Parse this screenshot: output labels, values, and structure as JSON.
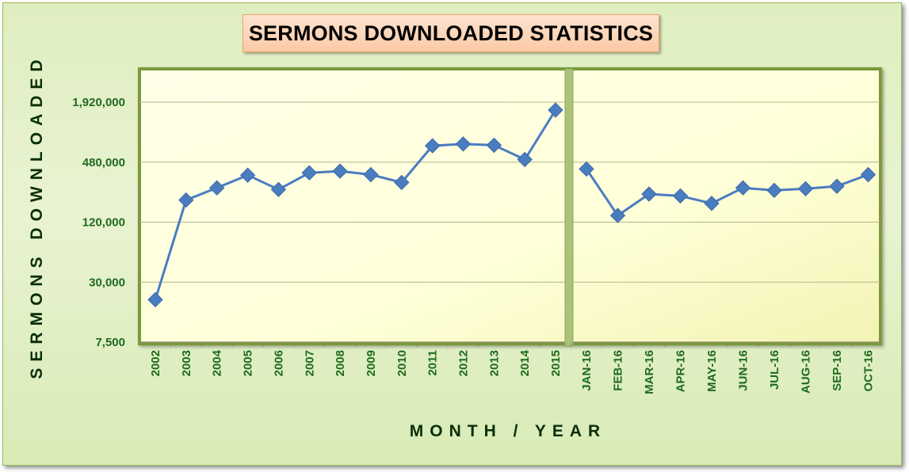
{
  "chart_data": {
    "type": "line",
    "title": "SERMONS DOWNLOADED STATISTICS",
    "xlabel": "MONTH / YEAR",
    "ylabel": "SERMONS DOWNLOADED",
    "y_scale": "log",
    "y_ticks": [
      7500,
      30000,
      120000,
      480000,
      1920000
    ],
    "y_tick_labels": [
      "7,500",
      "30,000",
      "120,000",
      "480,000",
      "1,920,000"
    ],
    "ylim": [
      7500,
      3800000
    ],
    "grid": true,
    "legend": "none",
    "marker": "diamond",
    "line_color": "#4a7cc0",
    "segments": [
      {
        "categories": [
          "2002",
          "2003",
          "2004",
          "2005",
          "2006",
          "2007",
          "2008",
          "2009",
          "2010",
          "2011",
          "2012",
          "2013",
          "2014",
          "2015"
        ],
        "values": [
          20000,
          200000,
          265000,
          355000,
          255000,
          375000,
          390000,
          360000,
          300000,
          700000,
          730000,
          710000,
          510000,
          1600000
        ]
      },
      {
        "categories": [
          "JAN-16",
          "FEB-16",
          "MAR-16",
          "APR-16",
          "MAY-16",
          "JUN-16",
          "JUL-16",
          "AUG-16",
          "SEP-16",
          "OCT-16"
        ],
        "values": [
          410000,
          140000,
          230000,
          220000,
          185000,
          265000,
          250000,
          260000,
          275000,
          360000
        ]
      }
    ]
  }
}
